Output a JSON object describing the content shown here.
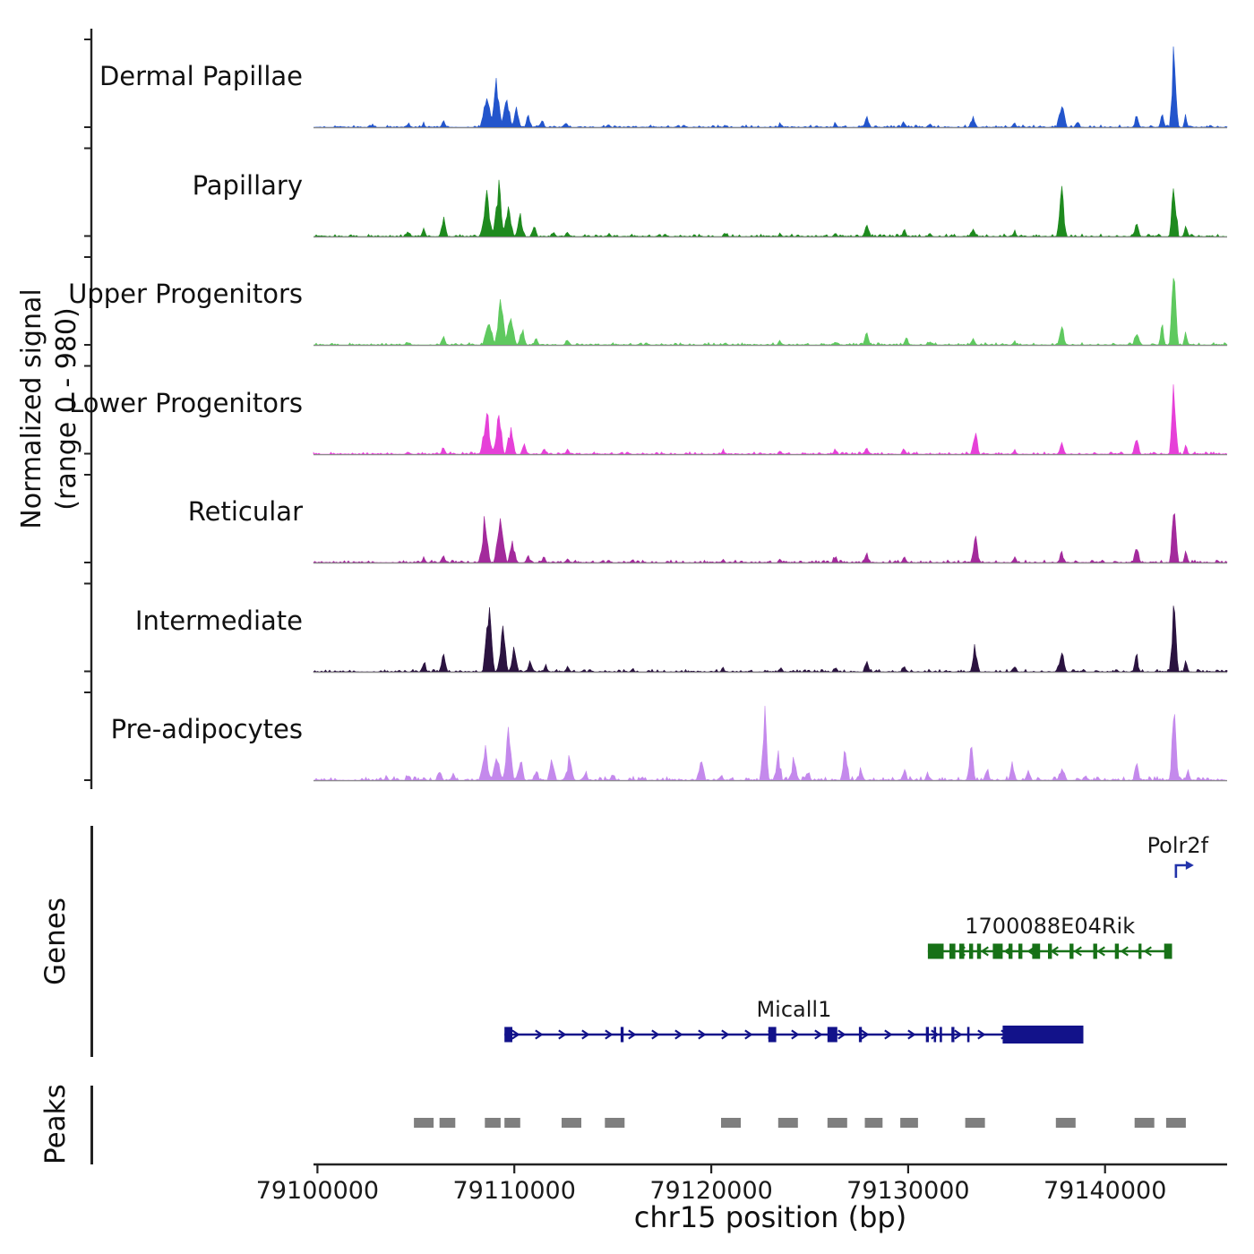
{
  "y_axis": {
    "label": "Normalized signal",
    "sublabel": "(range 0 - 980)"
  },
  "section_labels": {
    "genes": "Genes",
    "peaks": "Peaks"
  },
  "x_axis": {
    "label": "chr15 position (bp)",
    "ticks": [
      79100000,
      79110000,
      79120000,
      79130000,
      79140000
    ]
  },
  "chart_data": {
    "type": "area",
    "chromosome": "chr15",
    "signal_range": [
      0,
      980
    ],
    "x_domain": [
      79099800,
      79146200
    ],
    "tracks": [
      {
        "name": "Dermal Papillae",
        "color": "#2355cc",
        "noise": 0.018,
        "peaks": [
          [
            79102800,
            0.03,
            350
          ],
          [
            79104600,
            0.05,
            400
          ],
          [
            79105400,
            0.04,
            300
          ],
          [
            79106400,
            0.07,
            400
          ],
          [
            79108600,
            0.42,
            700
          ],
          [
            79109100,
            0.58,
            600
          ],
          [
            79109600,
            0.38,
            600
          ],
          [
            79110100,
            0.22,
            500
          ],
          [
            79110700,
            0.12,
            400
          ],
          [
            79111400,
            0.08,
            400
          ],
          [
            79112600,
            0.05,
            400
          ],
          [
            79114800,
            0.03,
            300
          ],
          [
            79120700,
            0.03,
            300
          ],
          [
            79123500,
            0.04,
            300
          ],
          [
            79126300,
            0.05,
            300
          ],
          [
            79127900,
            0.13,
            450
          ],
          [
            79129800,
            0.07,
            350
          ],
          [
            79131100,
            0.04,
            300
          ],
          [
            79133300,
            0.1,
            450
          ],
          [
            79135400,
            0.05,
            350
          ],
          [
            79137800,
            0.32,
            550
          ],
          [
            79138600,
            0.08,
            350
          ],
          [
            79141600,
            0.14,
            400
          ],
          [
            79142900,
            0.22,
            350
          ],
          [
            79143500,
            0.95,
            450
          ],
          [
            79144100,
            0.15,
            300
          ]
        ]
      },
      {
        "name": "Papillary",
        "color": "#1e8a1e",
        "noise": 0.02,
        "peaks": [
          [
            79104600,
            0.06,
            400
          ],
          [
            79105400,
            0.09,
            350
          ],
          [
            79106400,
            0.22,
            450
          ],
          [
            79108600,
            0.48,
            700
          ],
          [
            79109200,
            0.62,
            650
          ],
          [
            79109700,
            0.42,
            600
          ],
          [
            79110300,
            0.26,
            500
          ],
          [
            79111000,
            0.13,
            400
          ],
          [
            79112000,
            0.07,
            350
          ],
          [
            79112700,
            0.06,
            350
          ],
          [
            79114800,
            0.04,
            300
          ],
          [
            79120700,
            0.04,
            300
          ],
          [
            79123500,
            0.04,
            300
          ],
          [
            79126300,
            0.05,
            300
          ],
          [
            79127900,
            0.16,
            450
          ],
          [
            79129800,
            0.09,
            350
          ],
          [
            79131100,
            0.05,
            300
          ],
          [
            79133300,
            0.13,
            450
          ],
          [
            79135400,
            0.06,
            350
          ],
          [
            79137800,
            0.55,
            550
          ],
          [
            79141600,
            0.2,
            400
          ],
          [
            79143500,
            0.78,
            500
          ],
          [
            79144100,
            0.14,
            300
          ]
        ]
      },
      {
        "name": "Upper Progenitors",
        "color": "#5fc95f",
        "noise": 0.018,
        "peaks": [
          [
            79104600,
            0.04,
            350
          ],
          [
            79106400,
            0.09,
            400
          ],
          [
            79108700,
            0.32,
            650
          ],
          [
            79109300,
            0.55,
            650
          ],
          [
            79109800,
            0.43,
            600
          ],
          [
            79110400,
            0.2,
            450
          ],
          [
            79111100,
            0.1,
            350
          ],
          [
            79112700,
            0.05,
            350
          ],
          [
            79120700,
            0.03,
            300
          ],
          [
            79123500,
            0.04,
            300
          ],
          [
            79126300,
            0.05,
            300
          ],
          [
            79127900,
            0.13,
            450
          ],
          [
            79129900,
            0.1,
            350
          ],
          [
            79131100,
            0.05,
            300
          ],
          [
            79133300,
            0.1,
            400
          ],
          [
            79135400,
            0.05,
            300
          ],
          [
            79137800,
            0.2,
            500
          ],
          [
            79141600,
            0.17,
            400
          ],
          [
            79142900,
            0.25,
            350
          ],
          [
            79143500,
            1.0,
            480
          ],
          [
            79144100,
            0.18,
            300
          ]
        ]
      },
      {
        "name": "Lower Progenitors",
        "color": "#e640d8",
        "noise": 0.018,
        "peaks": [
          [
            79104600,
            0.04,
            350
          ],
          [
            79106400,
            0.07,
            400
          ],
          [
            79108600,
            0.62,
            650
          ],
          [
            79109200,
            0.55,
            600
          ],
          [
            79109800,
            0.33,
            550
          ],
          [
            79110500,
            0.13,
            400
          ],
          [
            79111500,
            0.07,
            350
          ],
          [
            79112700,
            0.06,
            350
          ],
          [
            79120600,
            0.04,
            300
          ],
          [
            79123500,
            0.04,
            300
          ],
          [
            79126300,
            0.06,
            300
          ],
          [
            79127900,
            0.1,
            400
          ],
          [
            79129800,
            0.08,
            350
          ],
          [
            79133400,
            0.3,
            480
          ],
          [
            79135400,
            0.06,
            350
          ],
          [
            79137800,
            0.12,
            450
          ],
          [
            79141600,
            0.26,
            400
          ],
          [
            79143500,
            0.95,
            480
          ],
          [
            79144100,
            0.16,
            300
          ]
        ]
      },
      {
        "name": "Reticular",
        "color": "#a32a9c",
        "noise": 0.02,
        "peaks": [
          [
            79105400,
            0.06,
            350
          ],
          [
            79106400,
            0.09,
            400
          ],
          [
            79108500,
            0.6,
            600
          ],
          [
            79109300,
            0.72,
            650
          ],
          [
            79109900,
            0.3,
            500
          ],
          [
            79110700,
            0.1,
            400
          ],
          [
            79111500,
            0.07,
            350
          ],
          [
            79112700,
            0.06,
            350
          ],
          [
            79116000,
            0.04,
            300
          ],
          [
            79120600,
            0.05,
            300
          ],
          [
            79123500,
            0.06,
            300
          ],
          [
            79126300,
            0.09,
            350
          ],
          [
            79127900,
            0.11,
            400
          ],
          [
            79129800,
            0.07,
            350
          ],
          [
            79133400,
            0.36,
            480
          ],
          [
            79135400,
            0.08,
            350
          ],
          [
            79137800,
            0.13,
            450
          ],
          [
            79141600,
            0.26,
            400
          ],
          [
            79143500,
            0.78,
            480
          ],
          [
            79144100,
            0.14,
            300
          ]
        ]
      },
      {
        "name": "Intermediate",
        "color": "#2b1340",
        "noise": 0.02,
        "peaks": [
          [
            79105400,
            0.13,
            400
          ],
          [
            79106400,
            0.19,
            450
          ],
          [
            79108700,
            0.88,
            650
          ],
          [
            79109400,
            0.55,
            600
          ],
          [
            79110000,
            0.3,
            500
          ],
          [
            79110800,
            0.15,
            400
          ],
          [
            79111600,
            0.08,
            350
          ],
          [
            79112700,
            0.08,
            350
          ],
          [
            79116000,
            0.04,
            300
          ],
          [
            79120600,
            0.04,
            300
          ],
          [
            79123500,
            0.05,
            300
          ],
          [
            79126300,
            0.07,
            300
          ],
          [
            79127900,
            0.13,
            400
          ],
          [
            79129800,
            0.07,
            350
          ],
          [
            79133400,
            0.36,
            480
          ],
          [
            79135400,
            0.1,
            350
          ],
          [
            79137800,
            0.32,
            500
          ],
          [
            79141600,
            0.2,
            400
          ],
          [
            79143500,
            0.75,
            480
          ],
          [
            79144100,
            0.14,
            300
          ]
        ]
      },
      {
        "name": "Pre-adipocytes",
        "color": "#c489ec",
        "noise": 0.03,
        "peaks": [
          [
            79103500,
            0.04,
            300
          ],
          [
            79104600,
            0.06,
            350
          ],
          [
            79106200,
            0.1,
            400
          ],
          [
            79106900,
            0.08,
            350
          ],
          [
            79108500,
            0.45,
            600
          ],
          [
            79109100,
            0.33,
            550
          ],
          [
            79109700,
            0.55,
            600
          ],
          [
            79110300,
            0.28,
            500
          ],
          [
            79111100,
            0.12,
            400
          ],
          [
            79111900,
            0.32,
            450
          ],
          [
            79112800,
            0.3,
            500
          ],
          [
            79113600,
            0.1,
            400
          ],
          [
            79115000,
            0.08,
            400
          ],
          [
            79116500,
            0.05,
            350
          ],
          [
            79119500,
            0.3,
            450
          ],
          [
            79120500,
            0.06,
            350
          ],
          [
            79122700,
            0.85,
            500
          ],
          [
            79123400,
            0.35,
            450
          ],
          [
            79124200,
            0.3,
            450
          ],
          [
            79124900,
            0.12,
            400
          ],
          [
            79126800,
            0.45,
            480
          ],
          [
            79127600,
            0.12,
            400
          ],
          [
            79129800,
            0.16,
            400
          ],
          [
            79131000,
            0.08,
            350
          ],
          [
            79133200,
            0.42,
            480
          ],
          [
            79134000,
            0.12,
            400
          ],
          [
            79135300,
            0.22,
            420
          ],
          [
            79136100,
            0.15,
            400
          ],
          [
            79137800,
            0.16,
            450
          ],
          [
            79139000,
            0.06,
            350
          ],
          [
            79141600,
            0.22,
            400
          ],
          [
            79143500,
            0.82,
            480
          ],
          [
            79144200,
            0.14,
            300
          ]
        ]
      }
    ],
    "genes": [
      {
        "name": "Polr2f",
        "glyph": "tss",
        "position": 79143600,
        "color": "#2233aa",
        "row": 0
      },
      {
        "name": "1700088E04Rik",
        "glyph": "gene",
        "start": 79131000,
        "end": 79143400,
        "strand": "-",
        "color": "#177117",
        "row": 1,
        "exons": [
          [
            79131000,
            79131800
          ],
          [
            79132100,
            79132400
          ],
          [
            79132600,
            79132850
          ],
          [
            79133100,
            79133300
          ],
          [
            79133500,
            79133700
          ],
          [
            79134300,
            79134800
          ],
          [
            79135100,
            79135300
          ],
          [
            79135600,
            79135800
          ],
          [
            79136300,
            79136700
          ],
          [
            79137100,
            79137300
          ],
          [
            79138200,
            79138400
          ],
          [
            79139400,
            79139600
          ],
          [
            79140500,
            79140700
          ],
          [
            79141700,
            79141850
          ],
          [
            79143000,
            79143400
          ]
        ]
      },
      {
        "name": "Micall1",
        "glyph": "gene",
        "start": 79109500,
        "end": 79138900,
        "strand": "+",
        "color": "#12128a",
        "row": 2,
        "exons": [
          [
            79109500,
            79109900
          ],
          [
            79115400,
            79115550
          ],
          [
            79122900,
            79123300
          ],
          [
            79125900,
            79126400
          ],
          [
            79127500,
            79127650
          ],
          [
            79130900,
            79131050
          ],
          [
            79131300,
            79131420
          ],
          [
            79131600,
            79131720
          ],
          [
            79132200,
            79132350
          ],
          [
            79133000,
            79133120
          ]
        ],
        "thick": [
          [
            79134800,
            79138900
          ]
        ]
      }
    ],
    "peak_regions": [
      [
        79104900,
        79105900
      ],
      [
        79106200,
        79107000
      ],
      [
        79108500,
        79109300
      ],
      [
        79109500,
        79110300
      ],
      [
        79112400,
        79113400
      ],
      [
        79114600,
        79115600
      ],
      [
        79120500,
        79121500
      ],
      [
        79123400,
        79124400
      ],
      [
        79125900,
        79126900
      ],
      [
        79127800,
        79128700
      ],
      [
        79129600,
        79130500
      ],
      [
        79132900,
        79133900
      ],
      [
        79137500,
        79138500
      ],
      [
        79141500,
        79142500
      ],
      [
        79143100,
        79144100
      ]
    ]
  }
}
